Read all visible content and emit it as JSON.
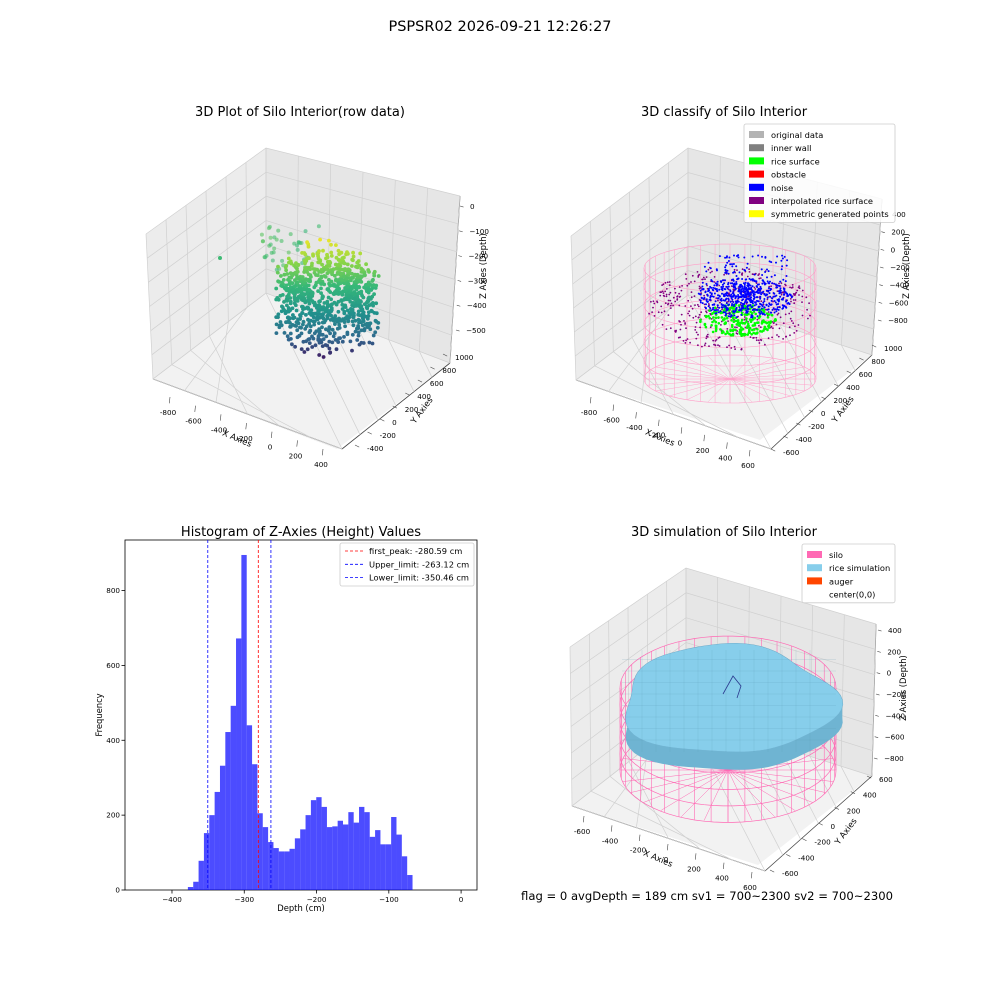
{
  "suptitle": "PSPSR02 2026-09-21 12:26:27",
  "status_text": "flag = 0     avgDepth = 189 cm  sv1 = 700~2300  sv2 = 700~2300",
  "plot_raw": {
    "title": "3D Plot of Silo Interior(row data)",
    "xlabel": "X Axies",
    "ylabel": "Y Axies",
    "zlabel": "Z Axies (Depth)",
    "xticks": [
      "-800",
      "-600",
      "-400",
      "-200",
      "0",
      "200",
      "400"
    ],
    "yticks": [
      "-400",
      "-200",
      "0",
      "200",
      "400",
      "600",
      "800",
      "1000"
    ],
    "zticks": [
      "0",
      "−100",
      "−200",
      "−300",
      "−400",
      "−500"
    ],
    "colormap": [
      "#440154",
      "#31688e",
      "#21918c",
      "#35b779",
      "#90d743",
      "#fde725"
    ]
  },
  "plot_classify": {
    "title": "3D classify of Silo Interior",
    "xlabel": "X Axies",
    "ylabel": "Y Axies",
    "zlabel": "Z Axies (Depth)",
    "xticks": [
      "-800",
      "-600",
      "-400",
      "-200",
      "0",
      "200",
      "400",
      "600"
    ],
    "yticks": [
      "-600",
      "-400",
      "-200",
      "0",
      "200",
      "400",
      "600",
      "800",
      "1000"
    ],
    "zticks": [
      "400",
      "200",
      "0",
      "−200",
      "−400",
      "−600",
      "−800"
    ],
    "legend": [
      {
        "label": "original data",
        "color": "#b3b3b3"
      },
      {
        "label": "inner wall",
        "color": "#808080"
      },
      {
        "label": "rice surface",
        "color": "#00ff00"
      },
      {
        "label": "obstacle",
        "color": "#ff0000"
      },
      {
        "label": "noise",
        "color": "#0000ff"
      },
      {
        "label": "interpolated rice surface",
        "color": "#800080"
      },
      {
        "label": "symmetric generated points",
        "color": "#ffff00"
      }
    ]
  },
  "plot_sim": {
    "title": "3D simulation of Silo Interior",
    "xlabel": "X Axies",
    "ylabel": "Y Axies",
    "zlabel": "Z Axies (Depth)",
    "xticks": [
      "-600",
      "-400",
      "-200",
      "0",
      "200",
      "400",
      "600"
    ],
    "yticks": [
      "-600",
      "-400",
      "-200",
      "0",
      "200",
      "400",
      "600"
    ],
    "zticks": [
      "400",
      "200",
      "0",
      "−200",
      "−400",
      "−600",
      "−800"
    ],
    "legend": [
      {
        "label": "silo",
        "color": "#ff69b4"
      },
      {
        "label": "rice simulation",
        "color": "#87ceeb"
      },
      {
        "label": "auger",
        "color": "#ff4500"
      },
      {
        "label": "center(0,0)",
        "color": "#ffffff"
      }
    ],
    "silo_color": "#ff69b4",
    "rice_color": "#87ceeb"
  },
  "chart_data": {
    "type": "bar",
    "title": "Histogram of Z-Axies (Height) Values",
    "xlabel": "Depth (cm)",
    "ylabel": "Frequency",
    "bar_color": "#0000ff",
    "bar_alpha": 0.7,
    "xlim": [
      -465,
      22
    ],
    "ylim": [
      0,
      935
    ],
    "xticks": [
      -400,
      -300,
      -200,
      -100,
      0
    ],
    "yticks": [
      0,
      200,
      400,
      600,
      800
    ],
    "bins": {
      "start": -378,
      "width": 7.4,
      "counts": [
        8,
        22,
        78,
        152,
        200,
        262,
        332,
        422,
        492,
        672,
        895,
        440,
        336,
        205,
        168,
        128,
        112,
        103,
        103,
        110,
        138,
        162,
        200,
        240,
        248,
        222,
        168,
        170,
        185,
        175,
        208,
        180,
        222,
        208,
        142,
        160,
        122,
        122,
        195,
        148,
        90,
        40
      ]
    },
    "lines": [
      {
        "label": "first_peak: -280.59 cm",
        "x": -280.59,
        "color": "#ff0000"
      },
      {
        "label": "Upper_limit: -263.12 cm",
        "x": -263.12,
        "color": "#0000ff"
      },
      {
        "label": "Lower_limit: -350.46 cm",
        "x": -350.46,
        "color": "#0000ff"
      }
    ]
  }
}
